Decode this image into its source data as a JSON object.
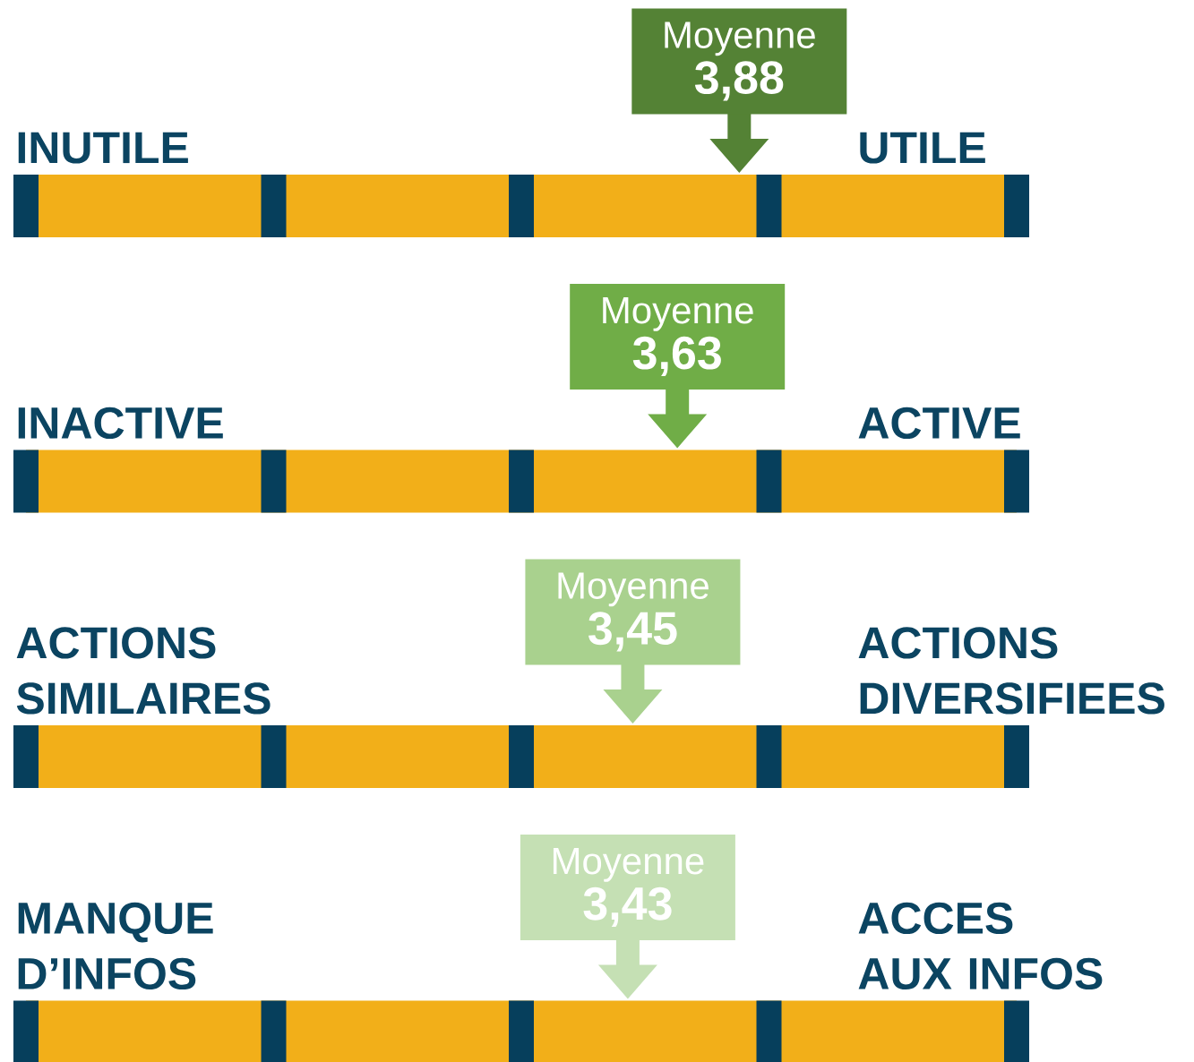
{
  "chart_data": [
    {
      "type": "other",
      "annotations": [
        "Moyenne",
        "INUTILE",
        "UTILE"
      ],
      "values": [
        3.88
      ],
      "value_labels": [
        "3,88"
      ],
      "color": "#548235"
    },
    {
      "type": "other",
      "annotations": [
        "Moyenne",
        "INACTIVE",
        "ACTIVE"
      ],
      "values": [
        3.63
      ],
      "value_labels": [
        "3,63"
      ],
      "color": "#70ad47"
    },
    {
      "type": "other",
      "annotations": [
        "Moyenne",
        "ACTIONS SIMILAIRES",
        "ACTIONS DIVERSIFIEES"
      ],
      "values": [
        3.45
      ],
      "value_labels": [
        "3,45"
      ],
      "color": "#a9d18e"
    },
    {
      "type": "other",
      "annotations": [
        "Moyenne",
        "MANQUE D’INFOS",
        "ACCES AUX INFOS"
      ],
      "values": [
        3.43
      ],
      "value_labels": [
        "3,43"
      ],
      "color": "#c5e0b4"
    }
  ]
}
